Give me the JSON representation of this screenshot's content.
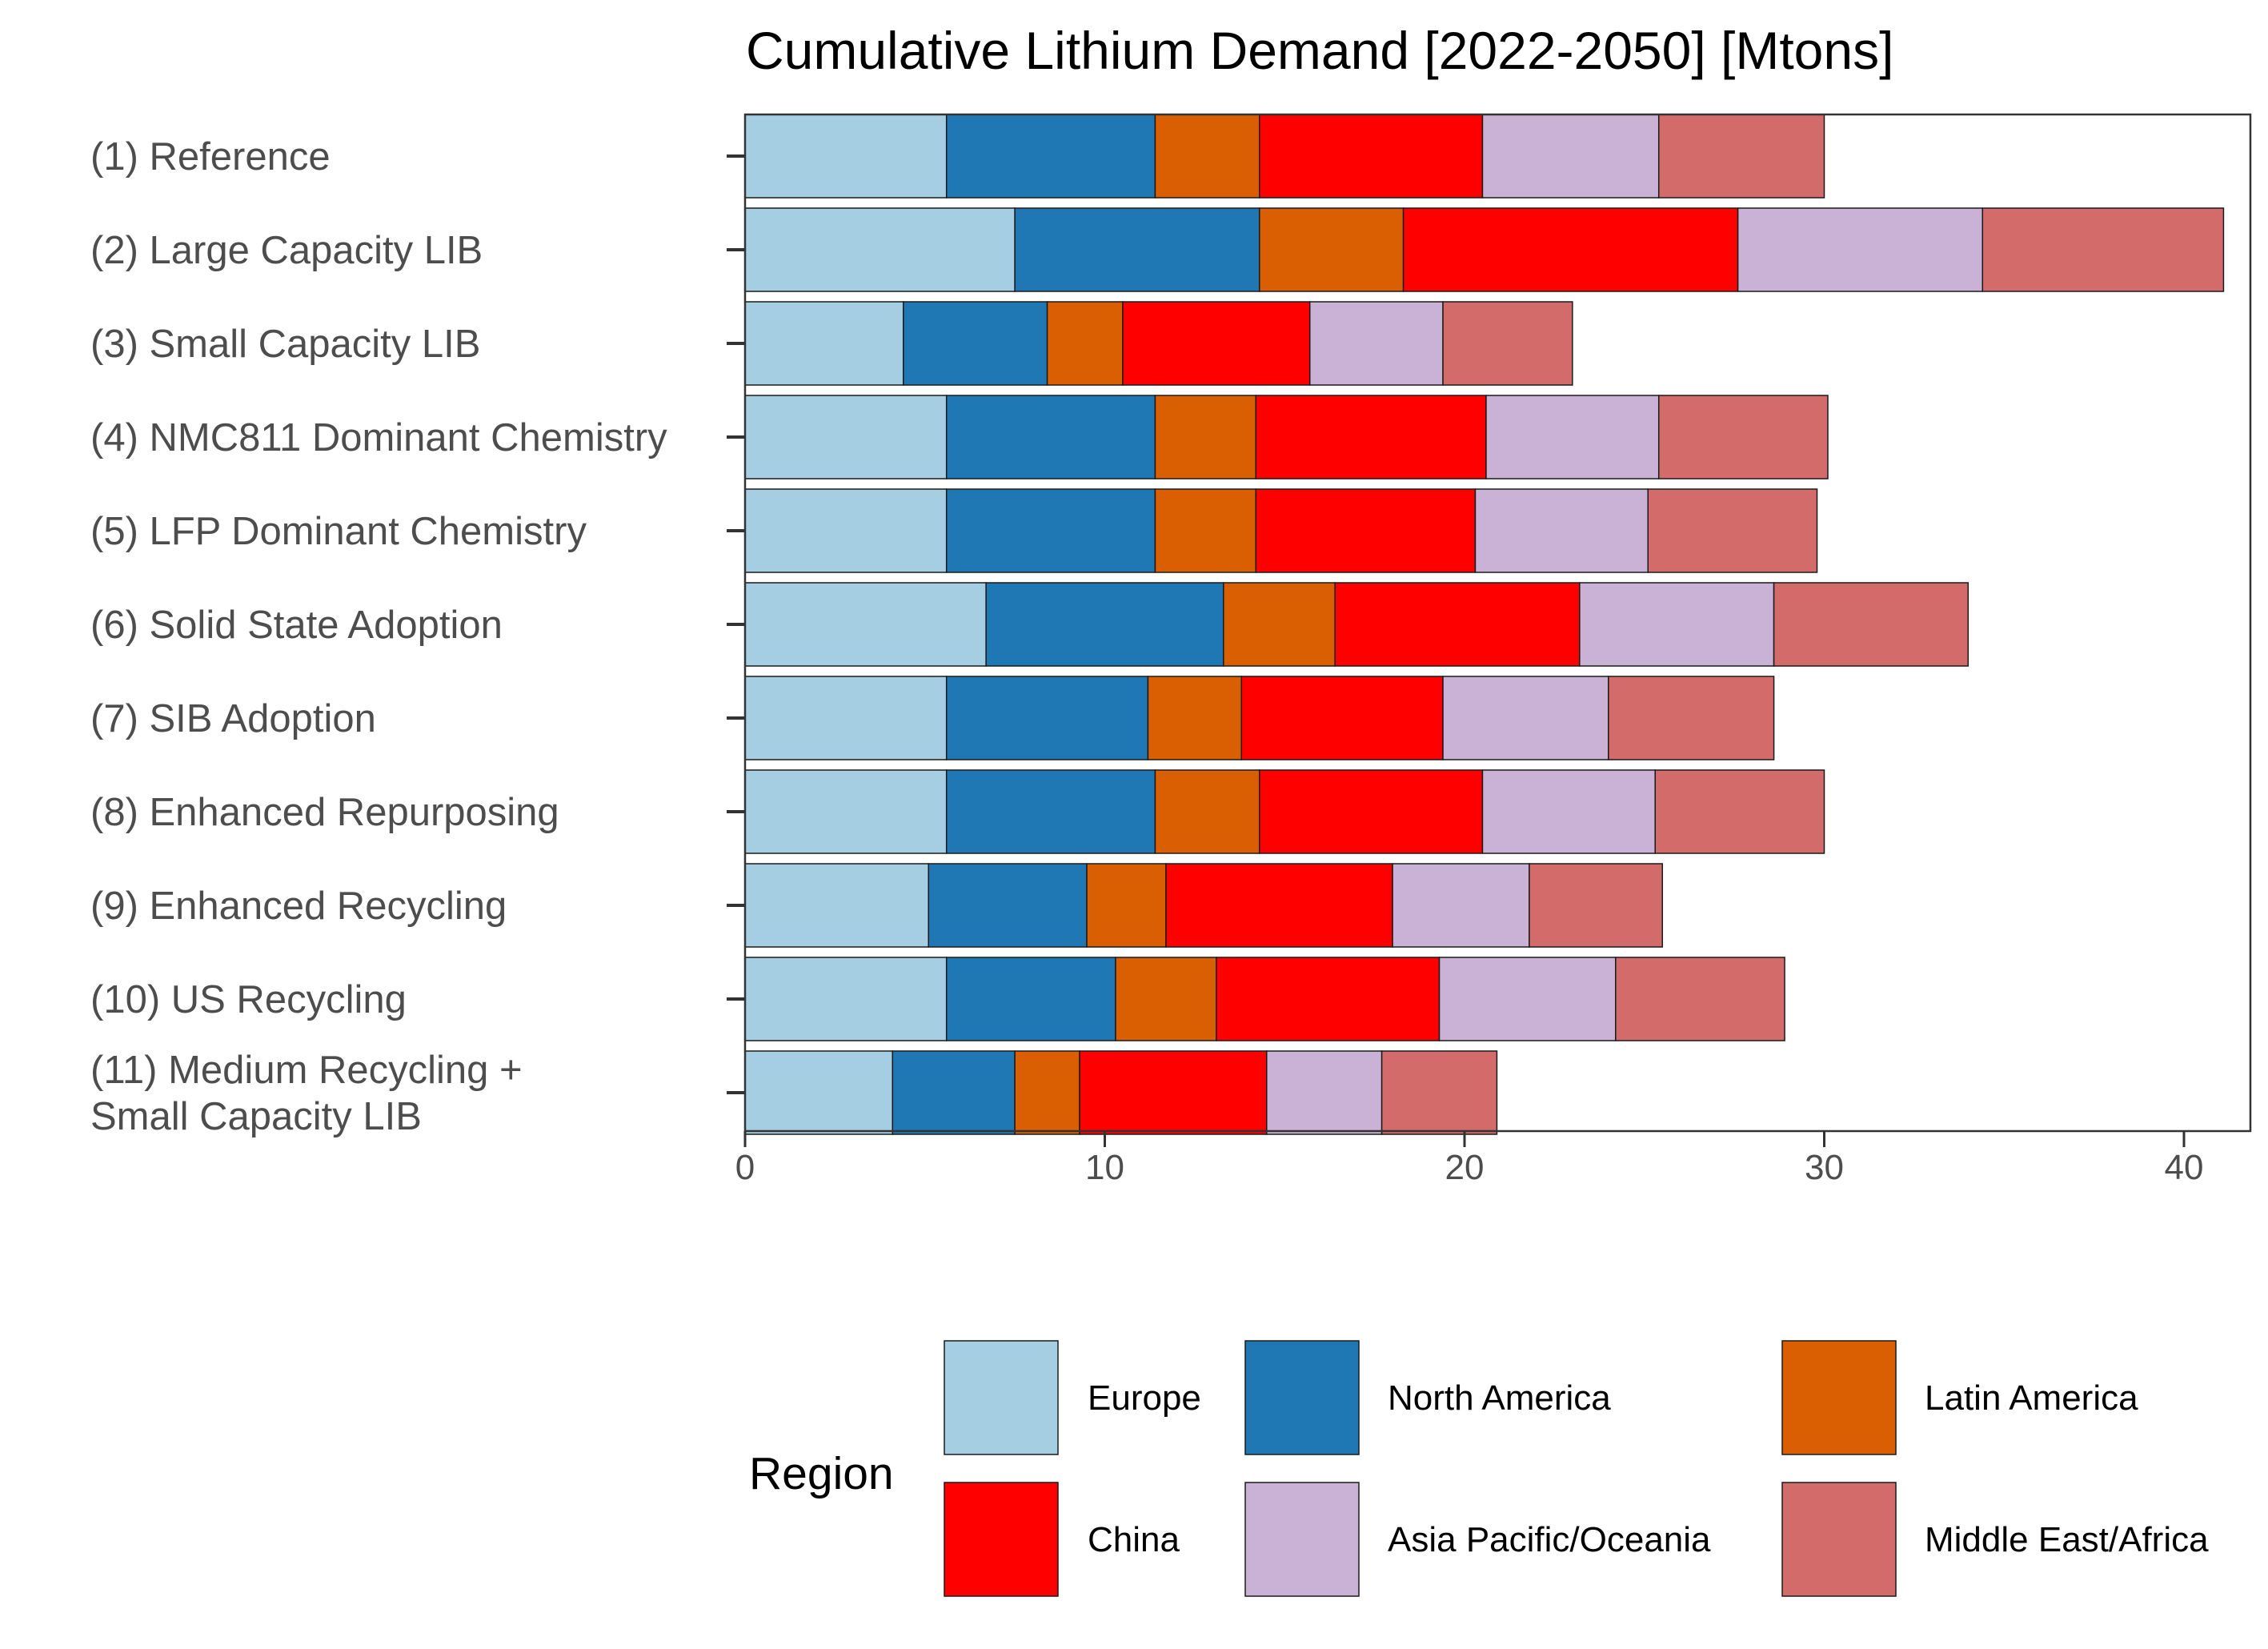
{
  "chart_data": {
    "type": "bar",
    "orientation": "horizontal",
    "stacked": true,
    "title": "Cumulative Lithium Demand [2022-2050] [Mtons]",
    "xlim": [
      0,
      41.8
    ],
    "x_ticks": [
      0,
      10,
      20,
      30,
      40
    ],
    "grid": false,
    "legend_title": "Region",
    "legend_position": "bottom",
    "categories": [
      [
        "(1) Reference"
      ],
      [
        "(2) Large Capacity LIB"
      ],
      [
        "(3) Small Capacity LIB"
      ],
      [
        "(4) NMC811 Dominant Chemistry"
      ],
      [
        "(5) LFP Dominant Chemistry"
      ],
      [
        "(6) Solid State Adoption"
      ],
      [
        "(7) SIB Adoption"
      ],
      [
        "(8) Enhanced Repurposing"
      ],
      [
        "(9) Enhanced Recycling"
      ],
      [
        "(10) US Recycling"
      ],
      [
        "(11) Medium Recycling +",
        "Small Capacity LIB"
      ]
    ],
    "series": [
      {
        "name": "Europe",
        "color": "#a6cee3",
        "values": [
          5.6,
          7.5,
          4.4,
          5.6,
          5.6,
          6.7,
          5.6,
          5.6,
          5.1,
          5.6,
          4.1
        ]
      },
      {
        "name": "North America",
        "color": "#1f78b4",
        "values": [
          5.8,
          6.8,
          4.0,
          5.8,
          5.8,
          6.6,
          5.6,
          5.8,
          4.4,
          4.7,
          3.4
        ]
      },
      {
        "name": "Latin America",
        "color": "#d95f02",
        "values": [
          2.9,
          4.0,
          2.1,
          2.8,
          2.8,
          3.1,
          2.6,
          2.9,
          2.2,
          2.8,
          1.8
        ]
      },
      {
        "name": "China",
        "color": "#ff0000",
        "values": [
          6.2,
          9.3,
          5.2,
          6.4,
          6.1,
          6.8,
          5.6,
          6.2,
          6.3,
          6.2,
          5.2
        ]
      },
      {
        "name": "Asia Pacific/Oceania",
        "color": "#cab2d6",
        "values": [
          4.9,
          6.8,
          3.7,
          4.8,
          4.8,
          5.4,
          4.6,
          4.8,
          3.8,
          4.9,
          3.2
        ]
      },
      {
        "name": "Middle East/Africa",
        "color": "#d46b6b",
        "values": [
          4.6,
          6.7,
          3.6,
          4.7,
          4.7,
          5.4,
          4.6,
          4.7,
          3.7,
          4.7,
          3.2
        ]
      }
    ]
  }
}
